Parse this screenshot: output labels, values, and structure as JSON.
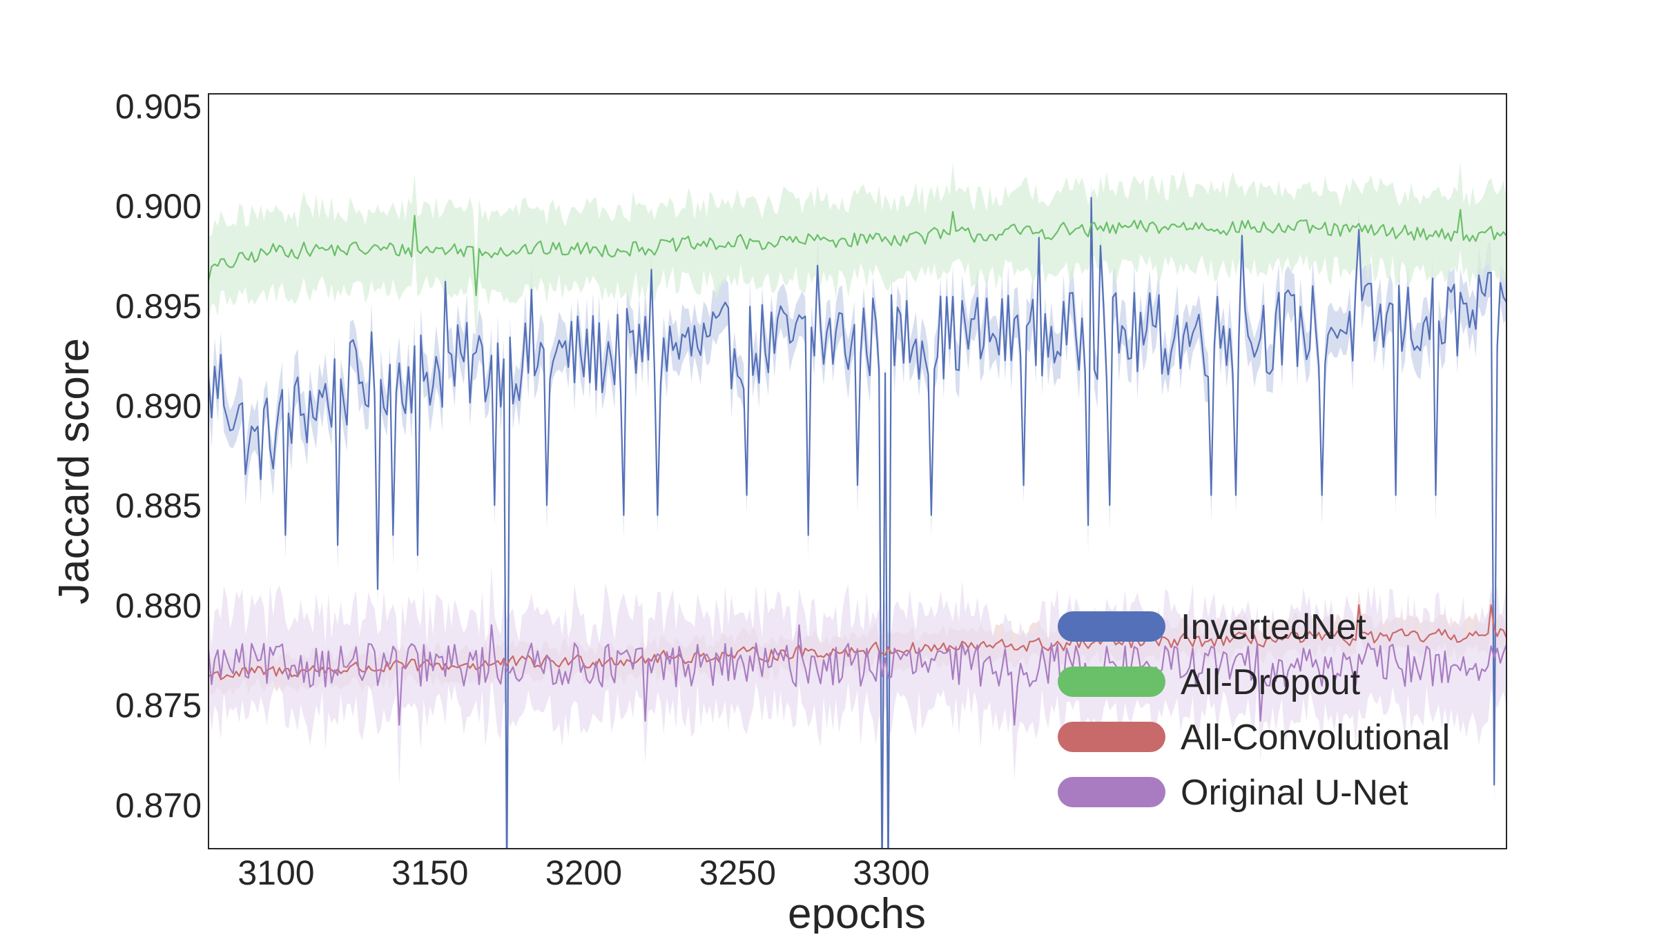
{
  "chart_data": {
    "type": "line",
    "title": "",
    "xlabel": "epochs",
    "ylabel": "Jaccard score",
    "xlim": [
      3078,
      3500
    ],
    "ylim": [
      0.8678,
      0.9056
    ],
    "x_ticks": [
      3100,
      3150,
      3200,
      3250,
      3300
    ],
    "x_tick_labels": [
      "3100",
      "3150",
      "3200",
      "3250",
      "3300"
    ],
    "y_ticks": [
      0.87,
      0.875,
      0.88,
      0.885,
      0.89,
      0.895,
      0.9,
      0.905
    ],
    "y_tick_labels": [
      "0.870",
      "0.875",
      "0.880",
      "0.885",
      "0.890",
      "0.895",
      "0.900",
      "0.905"
    ],
    "grid": false,
    "legend_position": "lower-right",
    "x_range": [
      3078,
      3500
    ],
    "series": [
      {
        "name": "InvertedNet",
        "color": "#5470b8",
        "band_color": "#c9d3ea",
        "mean": 0.8925,
        "mean_end": 0.8935,
        "noise": 0.0022,
        "band_halfwidth": 0.0012,
        "anchors": [
          [
            3078,
            0.8905
          ],
          [
            3082,
            0.8912
          ],
          [
            3092,
            0.8878
          ],
          [
            3105,
            0.8895
          ],
          [
            3130,
            0.8915
          ],
          [
            3200,
            0.8925
          ],
          [
            3300,
            0.8935
          ],
          [
            3400,
            0.8935
          ],
          [
            3500,
            0.8945
          ]
        ],
        "dips": [
          [
            3103,
            0.8835
          ],
          [
            3120,
            0.883
          ],
          [
            3133,
            0.8808
          ],
          [
            3138,
            0.8835
          ],
          [
            3146,
            0.8825
          ],
          [
            3155,
            0.884
          ],
          [
            3171,
            0.885
          ],
          [
            3175,
            0.866
          ],
          [
            3188,
            0.885
          ],
          [
            3213,
            0.8845
          ],
          [
            3224,
            0.8845
          ],
          [
            3253,
            0.8855
          ],
          [
            3273,
            0.8835
          ],
          [
            3289,
            0.886
          ],
          [
            3297,
            0.866
          ],
          [
            3299,
            0.866
          ],
          [
            3313,
            0.8845
          ],
          [
            3343,
            0.886
          ],
          [
            3364,
            0.884
          ],
          [
            3371,
            0.885
          ],
          [
            3404,
            0.8855
          ],
          [
            3412,
            0.8855
          ],
          [
            3440,
            0.8855
          ],
          [
            3464,
            0.8855
          ],
          [
            3477,
            0.8855
          ],
          [
            3496,
            0.871
          ]
        ],
        "peaks": [
          [
            3155,
            0.8962
          ],
          [
            3183,
            0.8958
          ],
          [
            3222,
            0.8968
          ],
          [
            3276,
            0.897
          ],
          [
            3348,
            0.8984
          ],
          [
            3365,
            0.9004
          ],
          [
            3368,
            0.898
          ],
          [
            3414,
            0.8985
          ],
          [
            3452,
            0.8988
          ]
        ]
      },
      {
        "name": "All-Dropout",
        "color": "#6abf69",
        "band_color": "#d9efd9",
        "mean": 0.8978,
        "mean_end": 0.8992,
        "noise": 0.0007,
        "band_halfwidth": 0.002,
        "anchors": [
          [
            3078,
            0.8968
          ],
          [
            3100,
            0.8978
          ],
          [
            3200,
            0.8978
          ],
          [
            3300,
            0.8984
          ],
          [
            3400,
            0.899
          ],
          [
            3500,
            0.8985
          ]
        ],
        "dips": [
          [
            3165,
            0.8955
          ]
        ],
        "peaks": [
          [
            3145,
            0.8995
          ],
          [
            3320,
            0.8997
          ],
          [
            3485,
            0.8998
          ]
        ]
      },
      {
        "name": "All-Convolutional",
        "color": "#c86a6a",
        "band_color": "#efd6d6",
        "mean": 0.8768,
        "mean_end": 0.8785,
        "noise": 0.0006,
        "band_halfwidth": 0.0008,
        "anchors": [
          [
            3078,
            0.8765
          ],
          [
            3120,
            0.8768
          ],
          [
            3200,
            0.8772
          ],
          [
            3300,
            0.8778
          ],
          [
            3400,
            0.8782
          ],
          [
            3500,
            0.8785
          ]
        ],
        "dips": [],
        "peaks": [
          [
            3452,
            0.88
          ],
          [
            3495,
            0.88
          ]
        ]
      },
      {
        "name": "Original U-Net",
        "color": "#a97cc2",
        "band_color": "#eadff1",
        "mean": 0.877,
        "mean_end": 0.877,
        "noise": 0.0011,
        "band_halfwidth": 0.0025,
        "anchors": [
          [
            3078,
            0.877
          ],
          [
            3500,
            0.877
          ]
        ],
        "dips": [
          [
            3140,
            0.874
          ],
          [
            3220,
            0.8742
          ],
          [
            3340,
            0.874
          ],
          [
            3420,
            0.8742
          ]
        ],
        "peaks": [
          [
            3170,
            0.879
          ],
          [
            3270,
            0.879
          ]
        ]
      }
    ]
  }
}
